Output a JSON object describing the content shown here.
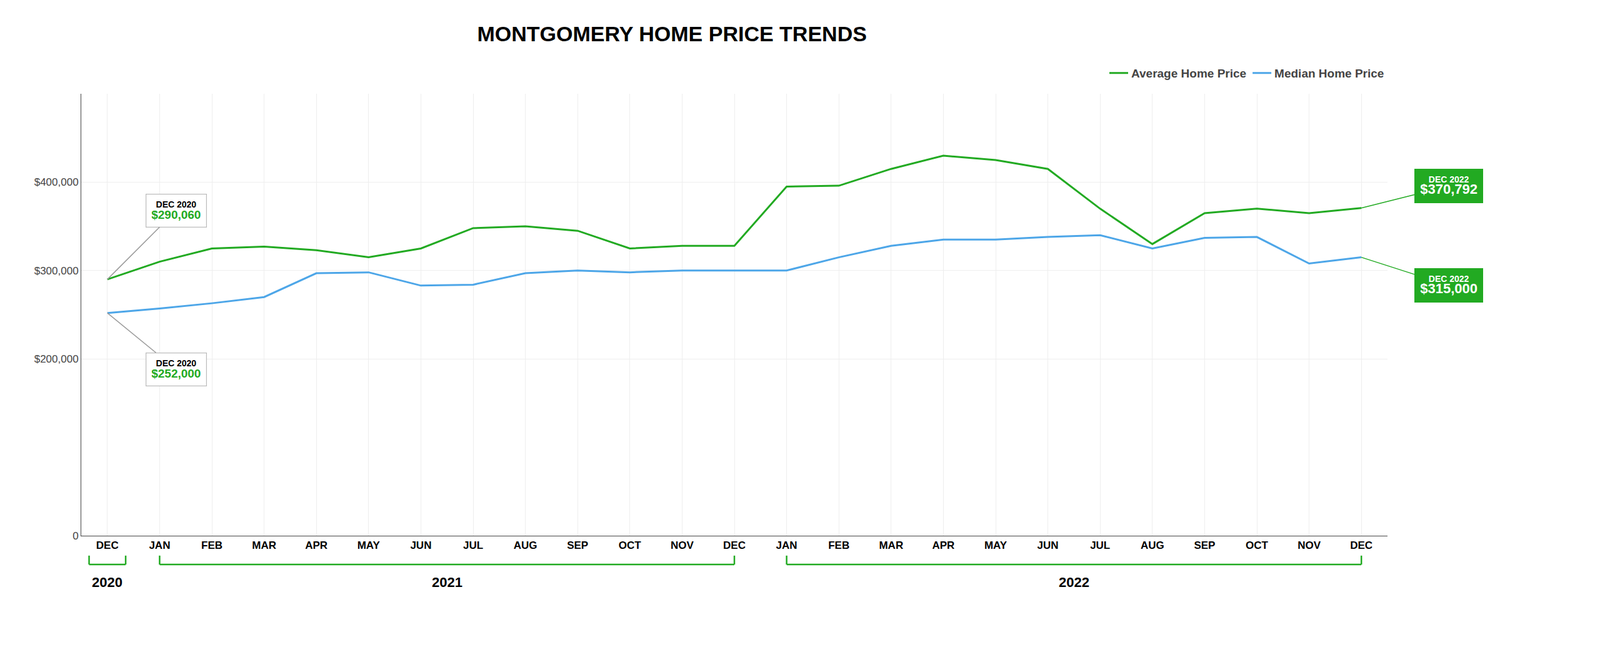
{
  "chart_data": {
    "type": "line",
    "title": "MONTGOMERY HOME PRICE TRENDS",
    "categories": [
      "DEC",
      "JAN",
      "FEB",
      "MAR",
      "APR",
      "MAY",
      "JUN",
      "JUL",
      "AUG",
      "SEP",
      "OCT",
      "NOV",
      "DEC",
      "JAN",
      "FEB",
      "MAR",
      "APR",
      "MAY",
      "JUN",
      "JUL",
      "AUG",
      "SEP",
      "OCT",
      "NOV",
      "DEC"
    ],
    "series": [
      {
        "name": "Average Home Price",
        "color": "#22aa22",
        "values": [
          290060,
          310000,
          325000,
          327000,
          323000,
          315000,
          325000,
          348000,
          350000,
          345000,
          325000,
          328000,
          328000,
          395000,
          396000,
          415000,
          430000,
          425000,
          415000,
          370000,
          330000,
          365000,
          370000,
          365000,
          370792
        ]
      },
      {
        "name": "Median Home Price",
        "color": "#4da6e8",
        "values": [
          252000,
          257000,
          263000,
          270000,
          297000,
          298000,
          283000,
          284000,
          297000,
          300000,
          298000,
          300000,
          300000,
          300000,
          315000,
          328000,
          335000,
          335000,
          338000,
          340000,
          325000,
          337000,
          338000,
          308000,
          315000
        ]
      }
    ],
    "ylim": [
      0,
      500000
    ],
    "yticks": [
      0,
      {
        "value": 200000,
        "label": "$200,000"
      },
      {
        "value": 300000,
        "label": "$300,000"
      },
      {
        "value": 400000,
        "label": "$400,000"
      }
    ],
    "grid": true,
    "legend": "upper right",
    "annotations": [
      {
        "series": "Average Home Price",
        "x": 0,
        "label": "DEC 2020",
        "value": 290060,
        "value_label": "$290,060"
      },
      {
        "series": "Median Home Price",
        "x": 0,
        "label": "DEC 2020",
        "value": 252000,
        "value_label": "$252,000"
      },
      {
        "series": "Average Home Price",
        "x": 24,
        "label": "DEC 2022",
        "value": 370792,
        "value_label": "$370,792"
      },
      {
        "series": "Median Home Price",
        "x": 24,
        "label": "DEC 2022",
        "value": 315000,
        "value_label": "$315,000"
      }
    ],
    "year_labels": [
      {
        "text": "2020",
        "from": 0,
        "to": 0
      },
      {
        "text": "2021",
        "from": 1,
        "to": 12
      },
      {
        "text": "2022",
        "from": 13,
        "to": 24
      }
    ]
  }
}
